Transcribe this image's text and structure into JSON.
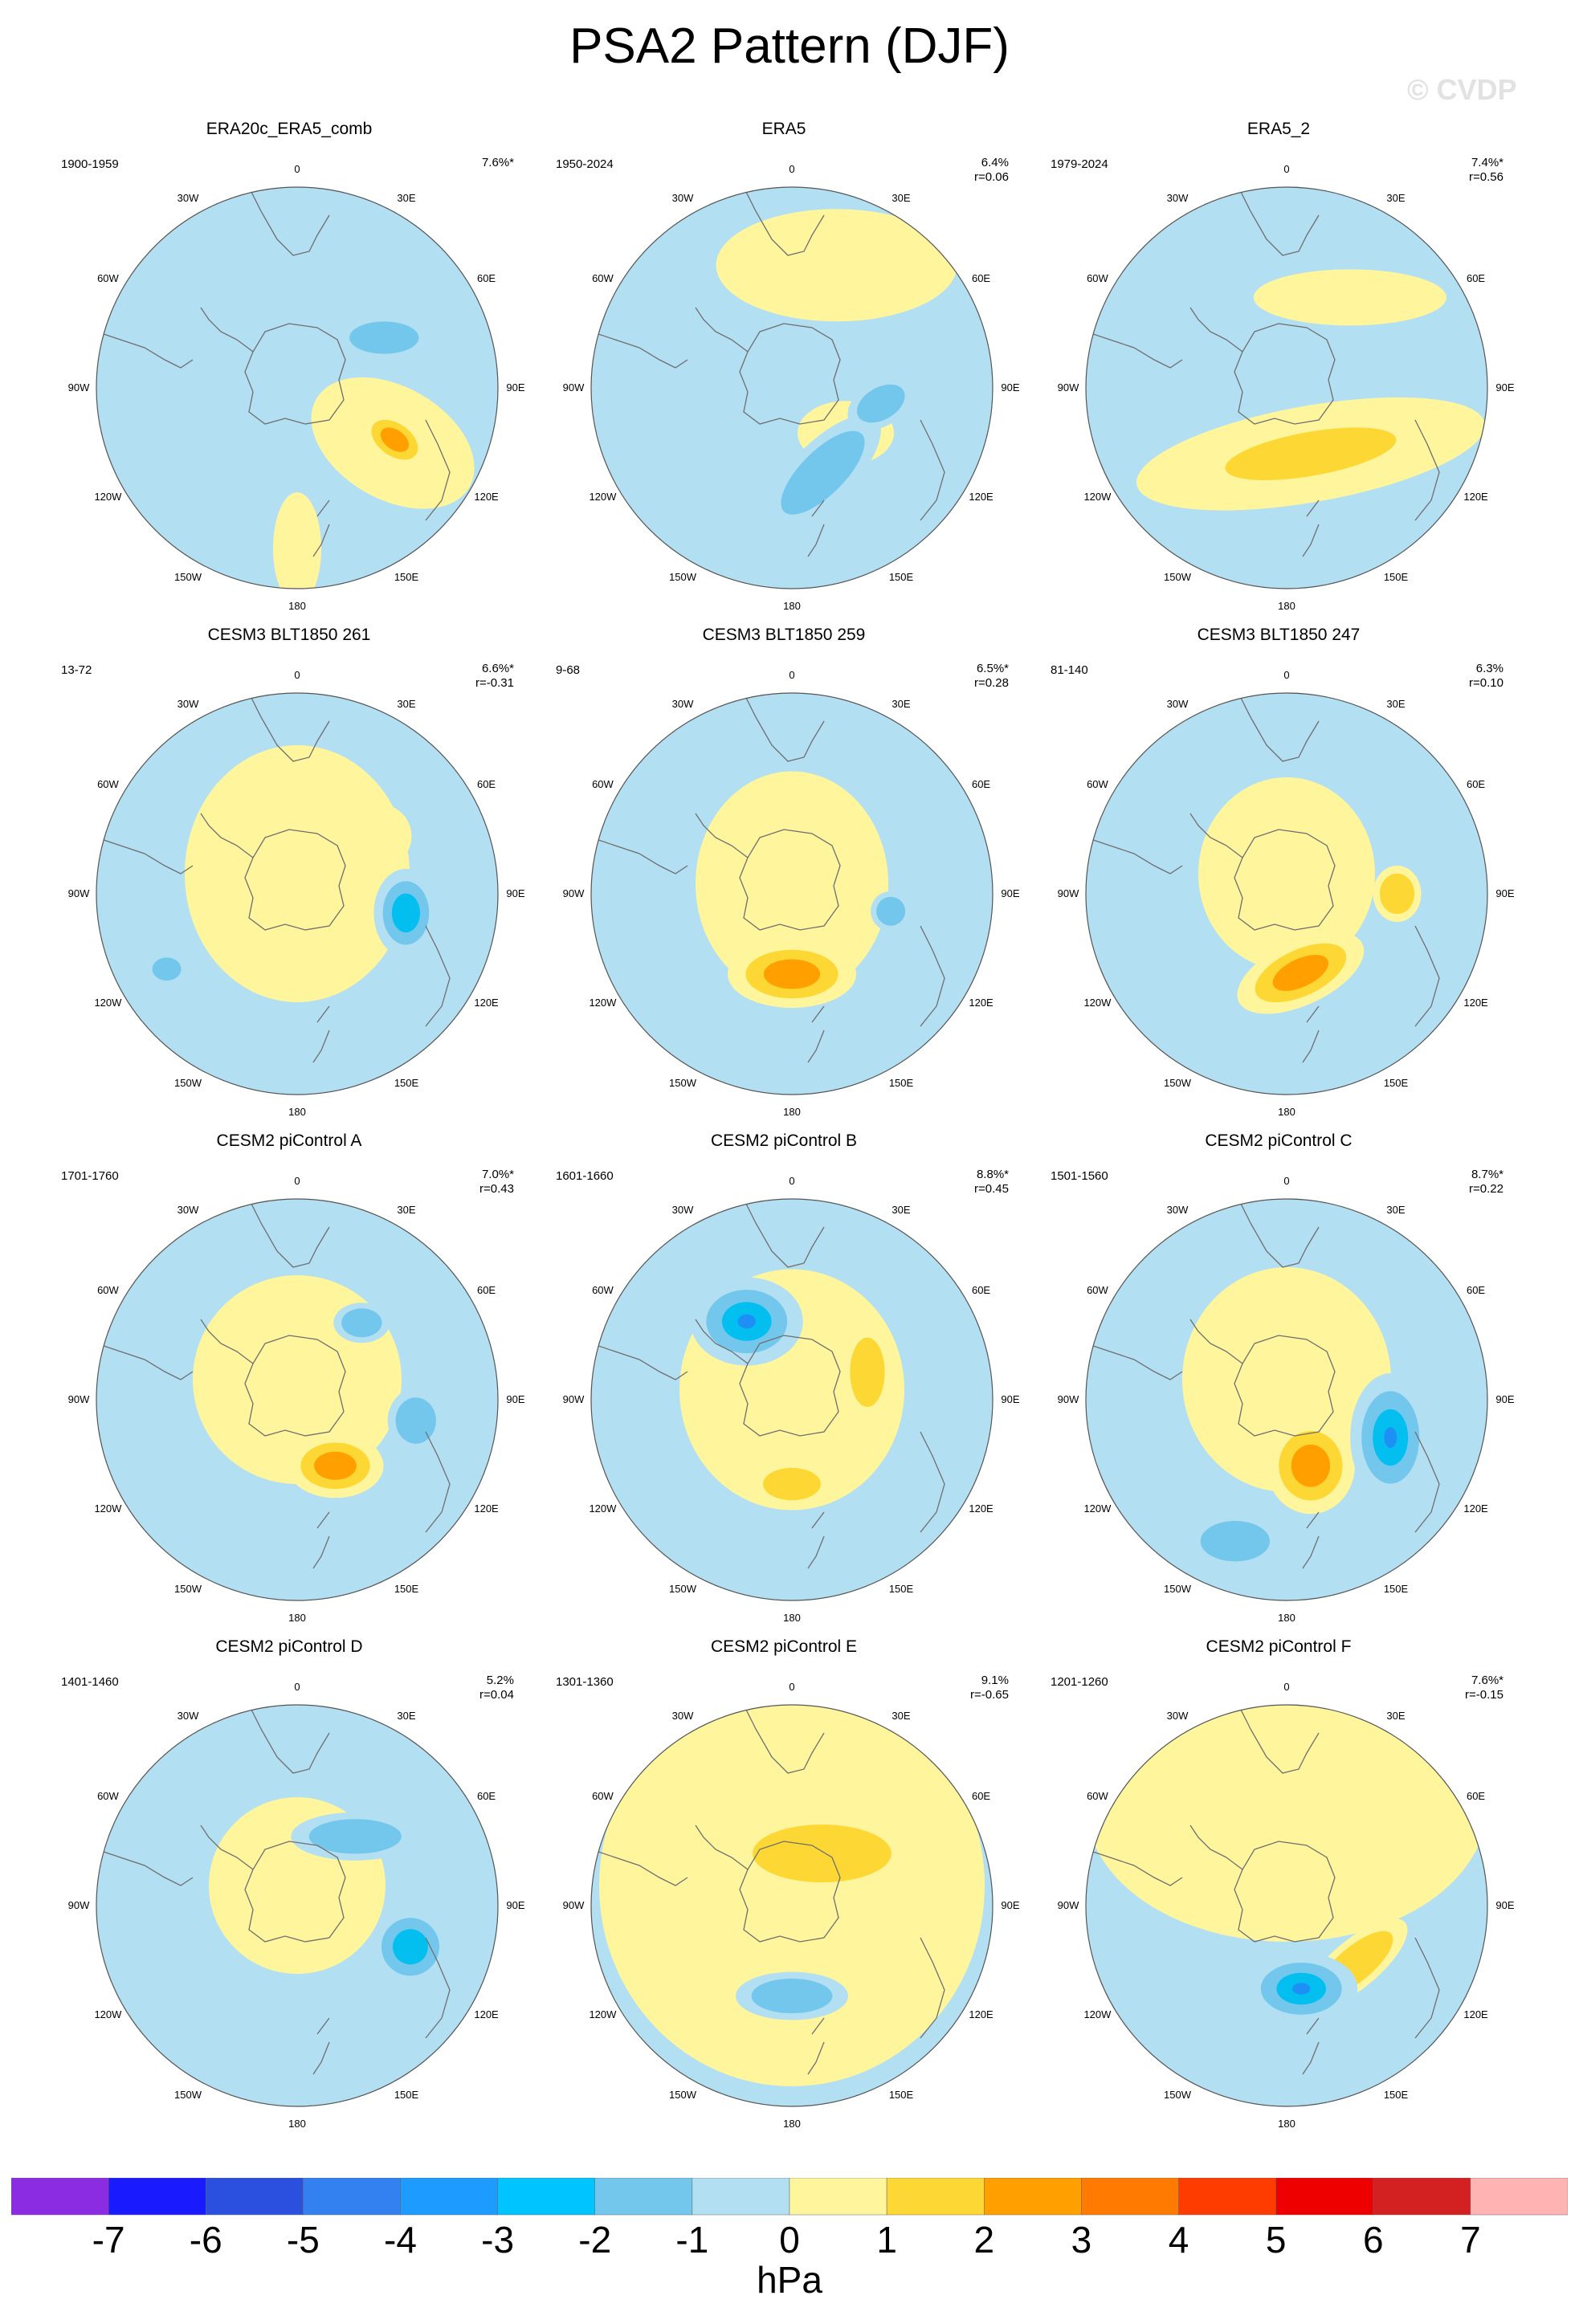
{
  "title": "PSA2 Pattern (DJF)",
  "watermark": "© CVDP",
  "map_labels": {
    "top": "0",
    "top_left": "30W",
    "top_right": "30E",
    "upper_left": "60W",
    "upper_right": "60E",
    "left": "90W",
    "right": "90E",
    "lower_left": "120W",
    "lower_right": "120E",
    "bottom_left": "150W",
    "bottom_right": "150E",
    "bottom": "180"
  },
  "colors": {
    "pos1": "#fff59d",
    "pos2": "#fdd835",
    "pos3": "#ffa000",
    "pos4": "#f57c00",
    "neg1": "#b3dff2",
    "neg2": "#74c7ec",
    "neg3": "#03bff0",
    "neg4": "#1e90f5",
    "coast": "#6e6e6e"
  },
  "panels": [
    {
      "title": "ERA20c_ERA5_comb",
      "years": "1900-1959",
      "pct": "7.6%*",
      "r": "",
      "anoms": [
        {
          "type": "pos",
          "level": 1,
          "a": 180,
          "d": 0.8,
          "rx": 70,
          "ry": 30,
          "rot": 90
        },
        {
          "type": "pos",
          "level": 1,
          "a": 120,
          "d": 0.55,
          "rx": 110,
          "ry": 70,
          "rot": 30
        },
        {
          "type": "pos",
          "level": 3,
          "a": 118,
          "d": 0.55,
          "rx": 45,
          "ry": 28,
          "rot": 35
        },
        {
          "type": "neg",
          "level": 2,
          "a": 60,
          "d": 0.5,
          "rx": 60,
          "ry": 28,
          "rot": 0
        }
      ]
    },
    {
      "title": "ERA5",
      "years": "1950-2024",
      "pct": "6.4%",
      "r": "r=0.06",
      "anoms": [
        {
          "type": "pos",
          "level": 1,
          "a": 20,
          "d": 0.65,
          "rx": 150,
          "ry": 70,
          "rot": 0
        },
        {
          "type": "pos",
          "level": 1,
          "a": 130,
          "d": 0.35,
          "rx": 60,
          "ry": 40,
          "rot": 0
        },
        {
          "type": "neg",
          "level": 2,
          "a": 160,
          "d": 0.45,
          "rx": 95,
          "ry": 38,
          "rot": -45
        },
        {
          "type": "neg",
          "level": 2,
          "a": 100,
          "d": 0.45,
          "rx": 45,
          "ry": 28,
          "rot": -30
        }
      ]
    },
    {
      "title": "ERA5_2",
      "years": "1979-2024",
      "pct": "7.4%*",
      "r": "r=0.56",
      "anoms": [
        {
          "type": "pos",
          "level": 1,
          "a": 160,
          "d": 0.35,
          "rx": 220,
          "ry": 60,
          "rot": -10
        },
        {
          "type": "pos",
          "level": 2,
          "a": 160,
          "d": 0.35,
          "rx": 150,
          "ry": 38,
          "rot": -10
        },
        {
          "type": "pos",
          "level": 1,
          "a": 35,
          "d": 0.55,
          "rx": 120,
          "ry": 35,
          "rot": 0
        }
      ]
    },
    {
      "title": "CESM3 BLT1850 261",
      "years": "13-72",
      "pct": "6.6%*",
      "r": "r=-0.31",
      "anoms": [
        {
          "type": "pos",
          "level": 2,
          "a": 55,
          "d": 0.5,
          "rx": 40,
          "ry": 40,
          "rot": 0
        },
        {
          "type": "pos",
          "level": 1,
          "a": 0,
          "d": 0.1,
          "rx": 140,
          "ry": 160,
          "rot": 0
        },
        {
          "type": "neg",
          "level": 3,
          "a": 100,
          "d": 0.55,
          "rx": 40,
          "ry": 55,
          "rot": 0
        },
        {
          "type": "neg",
          "level": 2,
          "a": 240,
          "d": 0.75,
          "rx": 25,
          "ry": 20,
          "rot": 0
        }
      ]
    },
    {
      "title": "CESM3 BLT1850 259",
      "years": "9-68",
      "pct": "6.5%*",
      "r": "r=0.28",
      "anoms": [
        {
          "type": "pos",
          "level": 1,
          "a": 0,
          "d": 0.05,
          "rx": 120,
          "ry": 140,
          "rot": 0
        },
        {
          "type": "pos",
          "level": 3,
          "a": 180,
          "d": 0.4,
          "rx": 80,
          "ry": 42,
          "rot": 0
        },
        {
          "type": "neg",
          "level": 2,
          "a": 100,
          "d": 0.5,
          "rx": 25,
          "ry": 25,
          "rot": 0
        }
      ]
    },
    {
      "title": "CESM3 BLT1850 247",
      "years": "81-140",
      "pct": "6.3%",
      "r": "r=0.10",
      "anoms": [
        {
          "type": "pos",
          "level": 1,
          "a": 0,
          "d": 0.1,
          "rx": 110,
          "ry": 120,
          "rot": 0
        },
        {
          "type": "pos",
          "level": 2,
          "a": 90,
          "d": 0.55,
          "rx": 30,
          "ry": 35,
          "rot": 0
        },
        {
          "type": "pos",
          "level": 3,
          "a": 170,
          "d": 0.4,
          "rx": 85,
          "ry": 40,
          "rot": -25
        }
      ]
    },
    {
      "title": "CESM2 piControl A",
      "years": "1701-1760",
      "pct": "7.0%*",
      "r": "r=0.43",
      "anoms": [
        {
          "type": "pos",
          "level": 1,
          "a": 0,
          "d": 0.1,
          "rx": 130,
          "ry": 130,
          "rot": 0
        },
        {
          "type": "pos",
          "level": 3,
          "a": 150,
          "d": 0.38,
          "rx": 60,
          "ry": 40,
          "rot": 0
        },
        {
          "type": "neg",
          "level": 2,
          "a": 40,
          "d": 0.5,
          "rx": 35,
          "ry": 25,
          "rot": 0
        },
        {
          "type": "neg",
          "level": 2,
          "a": 100,
          "d": 0.6,
          "rx": 35,
          "ry": 40,
          "rot": 0
        }
      ]
    },
    {
      "title": "CESM2 piControl B",
      "years": "1601-1660",
      "pct": "8.8%*",
      "r": "r=0.45",
      "anoms": [
        {
          "type": "pos",
          "level": 1,
          "a": 0,
          "d": 0.05,
          "rx": 140,
          "ry": 150,
          "rot": 0
        },
        {
          "type": "pos",
          "level": 2,
          "a": 70,
          "d": 0.4,
          "rx": 30,
          "ry": 60,
          "rot": 0
        },
        {
          "type": "pos",
          "level": 2,
          "a": 180,
          "d": 0.42,
          "rx": 50,
          "ry": 28,
          "rot": 0
        },
        {
          "type": "neg",
          "level": 4,
          "a": 330,
          "d": 0.45,
          "rx": 70,
          "ry": 55,
          "rot": 0
        }
      ]
    },
    {
      "title": "CESM2 piControl C",
      "years": "1501-1560",
      "pct": "8.7%*",
      "r": "r=0.22",
      "anoms": [
        {
          "type": "pos",
          "level": 1,
          "a": 0,
          "d": 0.1,
          "rx": 130,
          "ry": 140,
          "rot": 0
        },
        {
          "type": "pos",
          "level": 3,
          "a": 160,
          "d": 0.35,
          "rx": 55,
          "ry": 60,
          "rot": 0
        },
        {
          "type": "neg",
          "level": 4,
          "a": 110,
          "d": 0.55,
          "rx": 50,
          "ry": 80,
          "rot": 0
        },
        {
          "type": "neg",
          "level": 2,
          "a": 200,
          "d": 0.75,
          "rx": 60,
          "ry": 35,
          "rot": 0
        }
      ]
    },
    {
      "title": "CESM2 piControl D",
      "years": "1401-1460",
      "pct": "5.2%",
      "r": "r=0.04",
      "anoms": [
        {
          "type": "pos",
          "level": 1,
          "a": 0,
          "d": 0.1,
          "rx": 110,
          "ry": 110,
          "rot": 0
        },
        {
          "type": "neg",
          "level": 3,
          "a": 110,
          "d": 0.6,
          "rx": 50,
          "ry": 50,
          "rot": 0
        },
        {
          "type": "neg",
          "level": 2,
          "a": 40,
          "d": 0.45,
          "rx": 80,
          "ry": 30,
          "rot": 0
        }
      ]
    },
    {
      "title": "CESM2 piControl E",
      "years": "1301-1360",
      "pct": "9.1%",
      "r": "r=-0.65",
      "anoms": [
        {
          "type": "pos",
          "level": 1,
          "a": 0,
          "d": 0.1,
          "rx": 240,
          "ry": 250,
          "rot": 0
        },
        {
          "type": "pos",
          "level": 2,
          "a": 30,
          "d": 0.3,
          "rx": 120,
          "ry": 50,
          "rot": 0
        },
        {
          "type": "neg",
          "level": 2,
          "a": 180,
          "d": 0.45,
          "rx": 70,
          "ry": 30,
          "rot": 0
        }
      ]
    },
    {
      "title": "CESM2 piControl F",
      "years": "1201-1260",
      "pct": "7.6%*",
      "r": "r=-0.15",
      "anoms": [
        {
          "type": "pos",
          "level": 1,
          "a": 0,
          "d": 0.5,
          "rx": 250,
          "ry": 170,
          "rot": 0
        },
        {
          "type": "pos",
          "level": 2,
          "a": 130,
          "d": 0.45,
          "rx": 80,
          "ry": 30,
          "rot": -40
        },
        {
          "type": "neg",
          "level": 4,
          "a": 170,
          "d": 0.42,
          "rx": 70,
          "ry": 45,
          "rot": 0
        }
      ]
    }
  ],
  "colorbar": {
    "unit": "hPa",
    "ticks": [
      "-7",
      "-6",
      "-5",
      "-4",
      "-3",
      "-2",
      "-1",
      "0",
      "1",
      "2",
      "3",
      "4",
      "5",
      "6",
      "7"
    ],
    "colors": [
      "#8b2be2",
      "#1a1aff",
      "#2b50e0",
      "#3380f0",
      "#1e9bff",
      "#00c4ff",
      "#74c7ec",
      "#b3dff2",
      "#fff59d",
      "#fdd835",
      "#ffa000",
      "#ff7a00",
      "#ff3c00",
      "#ee0000",
      "#d32020",
      "#ffb3b3"
    ]
  }
}
